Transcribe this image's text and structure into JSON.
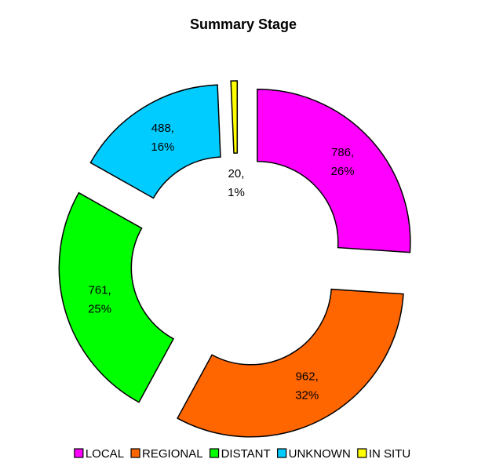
{
  "chart_data": {
    "type": "donut",
    "title": "Summary Stage",
    "categories": [
      "LOCAL",
      "REGIONAL",
      "DISTANT",
      "UNKNOWN",
      "IN SITU"
    ],
    "values": [
      786,
      962,
      761,
      488,
      20
    ],
    "value_labels": [
      [
        "786,",
        "26%"
      ],
      [
        "962,",
        "32%"
      ],
      [
        "761,",
        "25%"
      ],
      [
        "488,",
        "16%"
      ],
      [
        "20,",
        "1%"
      ]
    ],
    "colors": [
      "#ff00ff",
      "#ff6600",
      "#00ff00",
      "#00ccff",
      "#ffff00"
    ],
    "legend": "bottom"
  }
}
